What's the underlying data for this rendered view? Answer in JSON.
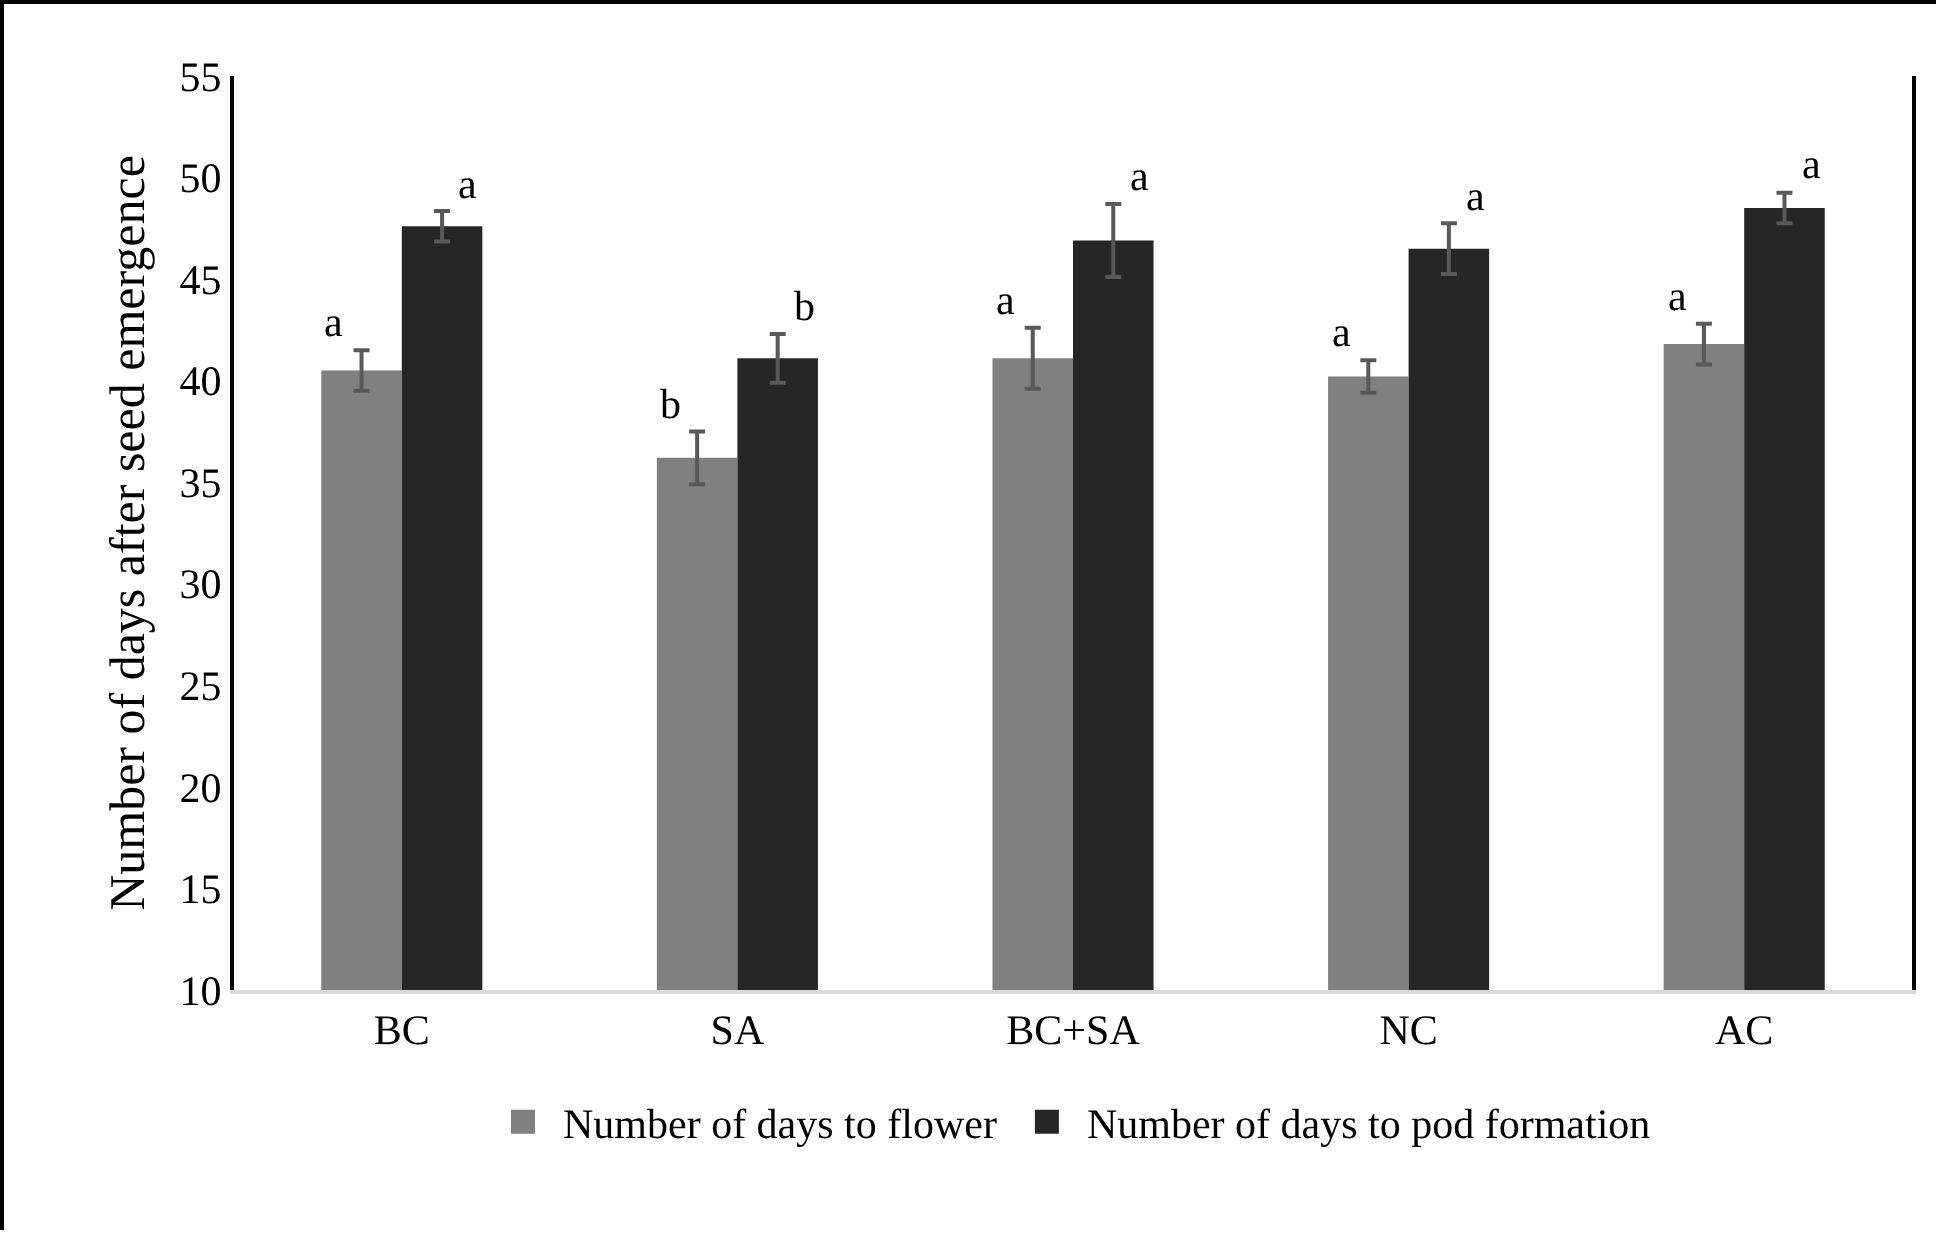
{
  "chart_data": {
    "type": "bar",
    "ylabel": "Number of days after seed emergence",
    "categories": [
      "BC",
      "SA",
      "BC+SA",
      "NC",
      "AC"
    ],
    "series": [
      {
        "name": "Number of days to flower",
        "color": "#808080",
        "values": [
          40.5,
          36.2,
          41.1,
          40.2,
          41.8
        ],
        "errors": [
          1.0,
          1.3,
          1.5,
          0.8,
          1.0
        ],
        "value_labels": [
          "a",
          "b",
          "a",
          "a",
          "a"
        ]
      },
      {
        "name": "Number of days to pod formation",
        "color": "#262626",
        "values": [
          47.6,
          41.1,
          46.9,
          46.5,
          48.5
        ],
        "errors": [
          0.75,
          1.2,
          1.8,
          1.25,
          0.75
        ],
        "value_labels": [
          "a",
          "b",
          "a",
          "a",
          "a"
        ]
      }
    ],
    "ylim": [
      10,
      55
    ],
    "yticks": [
      10,
      15,
      20,
      25,
      30,
      35,
      40,
      45,
      50,
      55
    ],
    "grid": false,
    "legend": "bottom"
  }
}
